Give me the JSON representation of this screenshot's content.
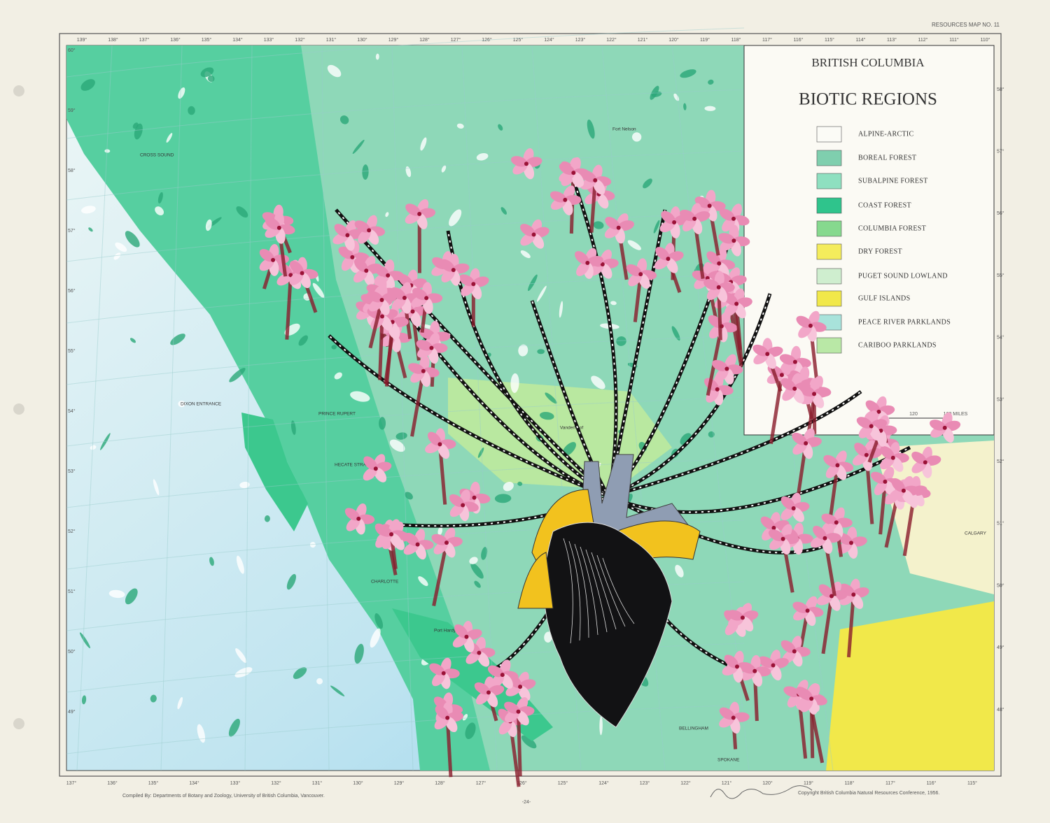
{
  "header": {
    "map_number": "RESOURCES MAP NO. 11"
  },
  "legend": {
    "title": "BRITISH COLUMBIA",
    "subtitle": "BIOTIC REGIONS",
    "items": [
      {
        "label": "ALPINE-ARCTIC",
        "color": "#fbfbf6"
      },
      {
        "label": "BOREAL FOREST",
        "color": "#7fcfae"
      },
      {
        "label": "SUBALPINE FOREST",
        "color": "#8ee0c0"
      },
      {
        "label": "COAST FOREST",
        "color": "#2fc48c"
      },
      {
        "label": "COLUMBIA FOREST",
        "color": "#86d98e"
      },
      {
        "label": "DRY FOREST",
        "color": "#f4ec5c"
      },
      {
        "label": "PUGET SOUND LOWLAND",
        "color": "#cfeecf"
      },
      {
        "label": "GULF ISLANDS",
        "color": "#f1e84a"
      },
      {
        "label": "PEACE RIVER PARKLANDS",
        "color": "#a8e3db"
      },
      {
        "label": "CARIBOO PARKLANDS",
        "color": "#b9e8a6"
      }
    ],
    "scale": {
      "mid": "120",
      "end": "160 MILES"
    }
  },
  "graticule": {
    "top": [
      "139°",
      "138°",
      "137°",
      "136°",
      "135°",
      "134°",
      "133°",
      "132°",
      "131°",
      "130°",
      "129°",
      "128°",
      "127°",
      "126°",
      "125°",
      "124°",
      "123°",
      "122°",
      "121°",
      "120°",
      "119°",
      "118°",
      "117°",
      "116°",
      "115°",
      "114°",
      "113°",
      "112°",
      "111°",
      "110°"
    ],
    "bottom": [
      "137°",
      "136°",
      "135°",
      "134°",
      "133°",
      "132°",
      "131°",
      "130°",
      "129°",
      "128°",
      "127°",
      "126°",
      "125°",
      "124°",
      "123°",
      "122°",
      "121°",
      "120°",
      "119°",
      "118°",
      "117°",
      "116°",
      "115°"
    ],
    "left": [
      "60°",
      "59°",
      "58°",
      "57°",
      "56°",
      "55°",
      "54°",
      "53°",
      "52°",
      "51°",
      "50°",
      "49°"
    ],
    "right": [
      "58°",
      "57°",
      "56°",
      "55°",
      "54°",
      "53°",
      "52°",
      "51°",
      "50°",
      "49°",
      "48°"
    ]
  },
  "places": [
    "DIXON ENTRANCE",
    "PRINCE RUPERT",
    "HECATE STRAIT",
    "CHARLOTTE",
    "Port Hardy",
    "Vanderhoof",
    "Fort Nelson",
    "CALGARY",
    "BELLINGHAM",
    "SPOKANE",
    "CROSS SOUND"
  ],
  "footer": {
    "compiled": "Compiled By: Departments of Botany and Zoology, University of British Columbia, Vancouver.",
    "page": "-24-",
    "copyright": "Copyright British Columbia Natural Resources Conference, 1956."
  }
}
